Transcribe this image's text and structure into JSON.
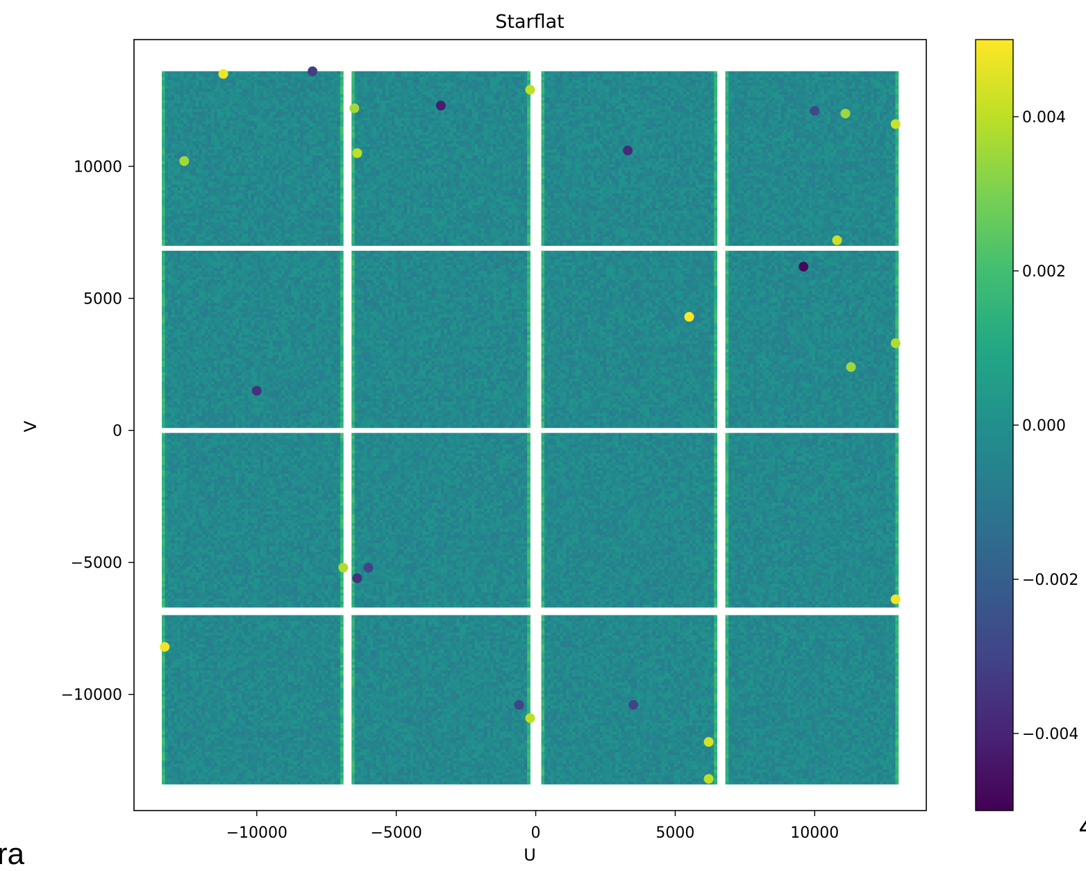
{
  "chart_data": {
    "type": "heatmap",
    "subtype": "hexbin",
    "title": "Starflat",
    "xlabel": "U",
    "ylabel": "V",
    "xlim": [
      -14400,
      14000
    ],
    "ylim": [
      -14400,
      14800
    ],
    "x_ticks": [
      -10000,
      -5000,
      0,
      5000,
      10000
    ],
    "x_tick_labels": [
      "−10000",
      "−5000",
      "0",
      "5000",
      "10000"
    ],
    "y_ticks": [
      10000,
      5000,
      0,
      -5000,
      -10000
    ],
    "y_tick_labels": [
      "10000",
      "5000",
      "0",
      "−5000",
      "−10000"
    ],
    "colormap": "viridis",
    "colorbar": {
      "range": [
        -0.005,
        0.005
      ],
      "ticks": [
        0.004,
        0.002,
        0.0,
        -0.002,
        -0.004
      ],
      "tick_labels": [
        "0.004",
        "0.002",
        "0.000",
        "−0.002",
        "−0.004"
      ]
    },
    "grid": false,
    "layout_description": "4 x 4 array of sensor panels separated by white gaps",
    "panel_u_ranges": [
      [
        -13400,
        -6900
      ],
      [
        -6600,
        -200
      ],
      [
        200,
        6500
      ],
      [
        6800,
        13000
      ]
    ],
    "panel_v_ranges": [
      [
        7000,
        13600
      ],
      [
        100,
        6800
      ],
      [
        -6700,
        -100
      ],
      [
        -13400,
        -7000
      ]
    ],
    "typical_value": -0.0003,
    "edge_value": 0.0015,
    "hotspots": [
      {
        "u": -11200,
        "v": 13500,
        "value": 0.0048
      },
      {
        "u": -6400,
        "v": 10500,
        "value": 0.004
      },
      {
        "u": -6500,
        "v": 12200,
        "value": 0.0036
      },
      {
        "u": -200,
        "v": 12900,
        "value": 0.004
      },
      {
        "u": 5500,
        "v": 4300,
        "value": 0.005
      },
      {
        "u": 11300,
        "v": 2400,
        "value": 0.0035
      },
      {
        "u": 12900,
        "v": 3300,
        "value": 0.0038
      },
      {
        "u": 12900,
        "v": 11600,
        "value": 0.0042
      },
      {
        "u": 12900,
        "v": -6400,
        "value": 0.0048
      },
      {
        "u": -13300,
        "v": -8200,
        "value": 0.0048
      },
      {
        "u": -200,
        "v": -10900,
        "value": 0.004
      },
      {
        "u": -6900,
        "v": -5200,
        "value": 0.0038
      },
      {
        "u": 6200,
        "v": -11800,
        "value": 0.0044
      },
      {
        "u": 6200,
        "v": -13200,
        "value": 0.004
      },
      {
        "u": 10800,
        "v": 7200,
        "value": 0.0042
      },
      {
        "u": -12600,
        "v": 10200,
        "value": 0.0036
      },
      {
        "u": 11100,
        "v": 12000,
        "value": 0.0035
      }
    ],
    "coldspots": [
      {
        "u": -3400,
        "v": 12300,
        "value": -0.0042
      },
      {
        "u": 3300,
        "v": 10600,
        "value": -0.0038
      },
      {
        "u": 9600,
        "v": 6200,
        "value": -0.0048
      },
      {
        "u": -10000,
        "v": 1500,
        "value": -0.0036
      },
      {
        "u": -6400,
        "v": -5600,
        "value": -0.0036
      },
      {
        "u": -6000,
        "v": -5200,
        "value": -0.003
      },
      {
        "u": -600,
        "v": -10400,
        "value": -0.003
      },
      {
        "u": 3500,
        "v": -10400,
        "value": -0.003
      },
      {
        "u": -8000,
        "v": 13600,
        "value": -0.0032
      },
      {
        "u": 10000,
        "v": 12100,
        "value": -0.0028
      }
    ]
  },
  "cropped_text": {
    "bottom_left": "ra",
    "bottom_right": "4"
  }
}
